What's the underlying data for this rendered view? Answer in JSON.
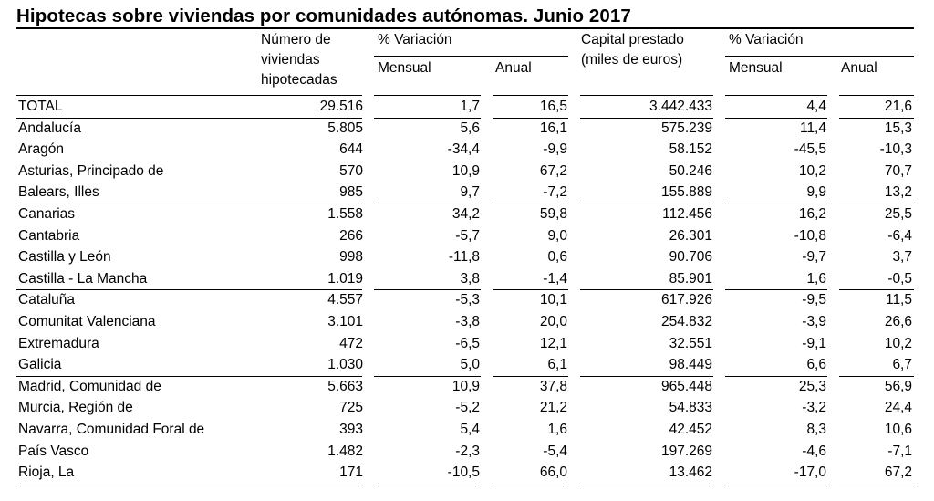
{
  "title": "Hipotecas sobre viviendas por comunidades autónomas. Junio 2017",
  "headers": {
    "col_viviendas": [
      "Número de",
      "viviendas",
      "hipotecadas"
    ],
    "variacion_1": "% Variación",
    "mensual_1": "Mensual",
    "anual_1": "Anual",
    "col_capital": [
      "Capital prestado",
      "(miles de euros)"
    ],
    "variacion_2": "% Variación",
    "mensual_2": "Mensual",
    "anual_2": "Anual"
  },
  "rows": [
    {
      "name": "TOTAL",
      "viviendas": "29.516",
      "var_mensual": "1,7",
      "var_anual": "16,5",
      "capital": "3.442.433",
      "cap_mensual": "4,4",
      "cap_anual": "21,6"
    },
    {
      "name": "Andalucía",
      "viviendas": "5.805",
      "var_mensual": "5,6",
      "var_anual": "16,1",
      "capital": "575.239",
      "cap_mensual": "11,4",
      "cap_anual": "15,3"
    },
    {
      "name": "Aragón",
      "viviendas": "644",
      "var_mensual": "-34,4",
      "var_anual": "-9,9",
      "capital": "58.152",
      "cap_mensual": "-45,5",
      "cap_anual": "-10,3"
    },
    {
      "name": "Asturias, Principado de",
      "viviendas": "570",
      "var_mensual": "10,9",
      "var_anual": "67,2",
      "capital": "50.246",
      "cap_mensual": "10,2",
      "cap_anual": "70,7"
    },
    {
      "name": "Balears, Illes",
      "viviendas": "985",
      "var_mensual": "9,7",
      "var_anual": "-7,2",
      "capital": "155.889",
      "cap_mensual": "9,9",
      "cap_anual": "13,2"
    },
    {
      "name": "Canarias",
      "viviendas": "1.558",
      "var_mensual": "34,2",
      "var_anual": "59,8",
      "capital": "112.456",
      "cap_mensual": "16,2",
      "cap_anual": "25,5"
    },
    {
      "name": "Cantabria",
      "viviendas": "266",
      "var_mensual": "-5,7",
      "var_anual": "9,0",
      "capital": "26.301",
      "cap_mensual": "-10,8",
      "cap_anual": "-6,4"
    },
    {
      "name": "Castilla y León",
      "viviendas": "998",
      "var_mensual": "-11,8",
      "var_anual": "0,6",
      "capital": "90.706",
      "cap_mensual": "-9,7",
      "cap_anual": "3,7"
    },
    {
      "name": "Castilla - La Mancha",
      "viviendas": "1.019",
      "var_mensual": "3,8",
      "var_anual": "-1,4",
      "capital": "85.901",
      "cap_mensual": "1,6",
      "cap_anual": "-0,5"
    },
    {
      "name": "Cataluña",
      "viviendas": "4.557",
      "var_mensual": "-5,3",
      "var_anual": "10,1",
      "capital": "617.926",
      "cap_mensual": "-9,5",
      "cap_anual": "11,5"
    },
    {
      "name": "Comunitat Valenciana",
      "viviendas": "3.101",
      "var_mensual": "-3,8",
      "var_anual": "20,0",
      "capital": "254.832",
      "cap_mensual": "-3,9",
      "cap_anual": "26,6"
    },
    {
      "name": "Extremadura",
      "viviendas": "472",
      "var_mensual": "-6,5",
      "var_anual": "12,1",
      "capital": "32.551",
      "cap_mensual": "-9,1",
      "cap_anual": "10,2"
    },
    {
      "name": "Galicia",
      "viviendas": "1.030",
      "var_mensual": "5,0",
      "var_anual": "6,1",
      "capital": "98.449",
      "cap_mensual": "6,6",
      "cap_anual": "6,7"
    },
    {
      "name": "Madrid, Comunidad de",
      "viviendas": "5.663",
      "var_mensual": "10,9",
      "var_anual": "37,8",
      "capital": "965.448",
      "cap_mensual": "25,3",
      "cap_anual": "56,9"
    },
    {
      "name": "Murcia, Región de",
      "viviendas": "725",
      "var_mensual": "-5,2",
      "var_anual": "21,2",
      "capital": "54.833",
      "cap_mensual": "-3,2",
      "cap_anual": "24,4"
    },
    {
      "name": "Navarra, Comunidad Foral de",
      "viviendas": "393",
      "var_mensual": "5,4",
      "var_anual": "1,6",
      "capital": "42.452",
      "cap_mensual": "8,3",
      "cap_anual": "10,6"
    },
    {
      "name": "País Vasco",
      "viviendas": "1.482",
      "var_mensual": "-2,3",
      "var_anual": "-5,4",
      "capital": "197.269",
      "cap_mensual": "-4,6",
      "cap_anual": "-7,1"
    },
    {
      "name": "Rioja, La",
      "viviendas": "171",
      "var_mensual": "-10,5",
      "var_anual": "66,0",
      "capital": "13.462",
      "cap_mensual": "-17,0",
      "cap_anual": "67,2"
    }
  ]
}
